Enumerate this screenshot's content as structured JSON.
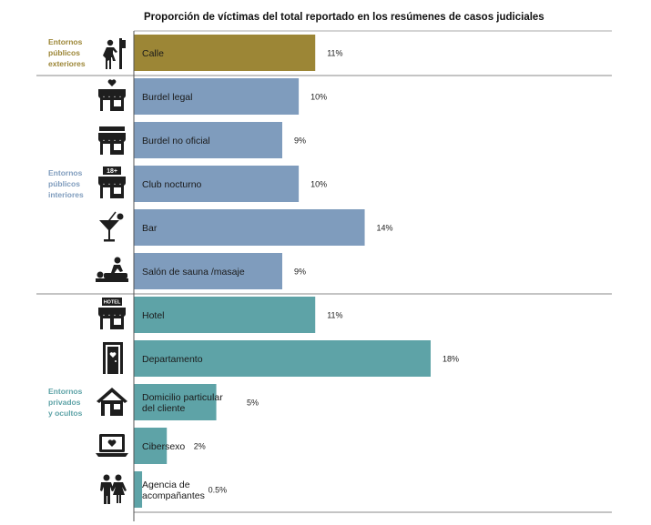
{
  "chart_data": {
    "type": "bar",
    "orientation": "horizontal",
    "title": "Proporción de víctimas del total reportado en los resúmenes de casos judiciales",
    "unit": "%",
    "xlim": [
      0,
      18
    ],
    "groups": [
      {
        "label": [
          "Entornos",
          "públicos",
          "exteriores"
        ],
        "color": "#9c8636",
        "items": [
          {
            "label": [
              "Calle"
            ],
            "value": 11,
            "value_label": "11%",
            "icon": "street-sign-person-icon"
          }
        ]
      },
      {
        "label": [
          "Entornos",
          "públicos",
          "interiores"
        ],
        "color": "#7f9cbd",
        "items": [
          {
            "label": [
              "Burdel legal"
            ],
            "value": 10,
            "value_label": "10%",
            "icon": "shop-heart-icon"
          },
          {
            "label": [
              "Burdel no oficial"
            ],
            "value": 9,
            "value_label": "9%",
            "icon": "shop-icon"
          },
          {
            "label": [
              "Club nocturno"
            ],
            "value": 10,
            "value_label": "10%",
            "icon": "club-18-plus-icon",
            "icon_text": "18+"
          },
          {
            "label": [
              "Bar"
            ],
            "value": 14,
            "value_label": "14%",
            "icon": "cocktail-icon"
          },
          {
            "label": [
              "Salón de sauna /masaje"
            ],
            "value": 9,
            "value_label": "9%",
            "icon": "massage-icon"
          }
        ]
      },
      {
        "label": [
          "Entornos",
          "privados",
          "y ocultos"
        ],
        "color": "#5ea3a7",
        "items": [
          {
            "label": [
              "Hotel"
            ],
            "value": 11,
            "value_label": "11%",
            "icon": "hotel-icon",
            "icon_text": "HOTEL"
          },
          {
            "label": [
              "Departamento"
            ],
            "value": 18,
            "value_label": "18%",
            "icon": "door-heart-icon"
          },
          {
            "label": [
              "Domicilio particular",
              "del cliente"
            ],
            "value": 5,
            "value_label": "5%",
            "icon": "house-icon"
          },
          {
            "label": [
              "Cibersexo"
            ],
            "value": 2,
            "value_label": "2%",
            "icon": "laptop-heart-icon"
          },
          {
            "label": [
              "Agencia de",
              "acompañantes"
            ],
            "value": 0.5,
            "value_label": "0.5%",
            "icon": "couple-icon"
          }
        ]
      }
    ]
  }
}
